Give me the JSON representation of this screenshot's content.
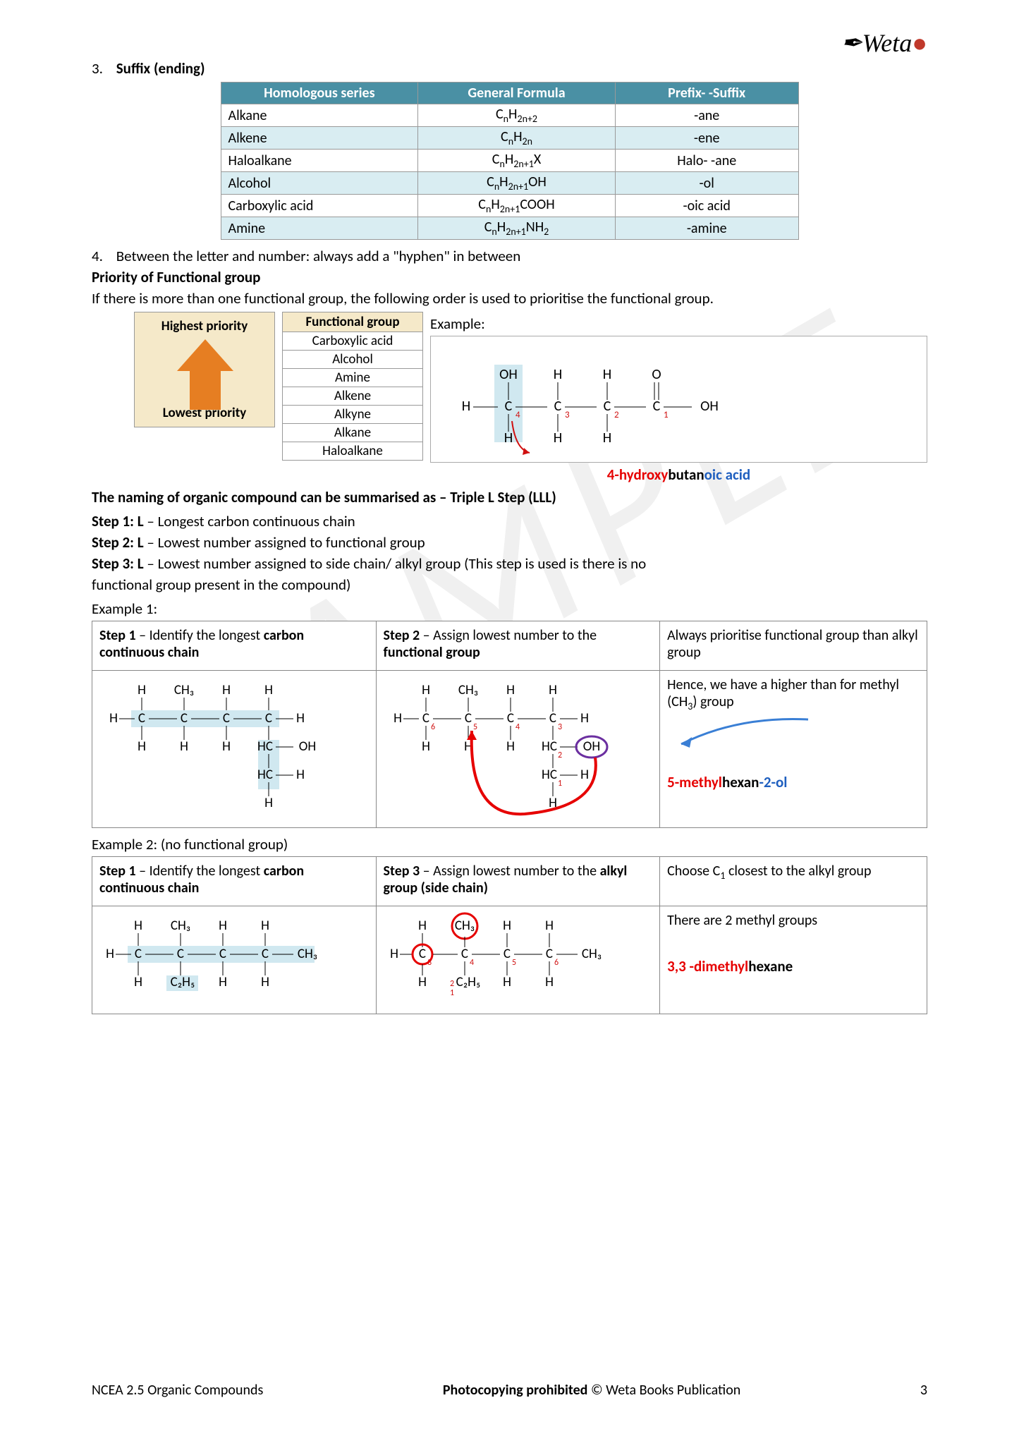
{
  "logo_text": "Weta",
  "watermark": "SAMPLE",
  "item3_num": "3.",
  "item3_title": "Suffix (ending)",
  "suffix_table": {
    "headers": [
      "Homologous series",
      "General Formula",
      "Prefix-  -Suffix"
    ],
    "rows": [
      [
        "Alkane",
        "C<sub>n</sub>H<sub>2n+2</sub>",
        "-ane"
      ],
      [
        "Alkene",
        "C<sub>n</sub>H<sub>2n</sub>",
        "-ene"
      ],
      [
        "Haloalkane",
        "C<sub>n</sub>H<sub>2n+1</sub>X",
        "Halo-   -ane"
      ],
      [
        "Alcohol",
        "C<sub>n</sub>H<sub>2n+1</sub>OH",
        "-ol"
      ],
      [
        "Carboxylic acid",
        "C<sub>n</sub>H<sub>2n+1</sub>COOH",
        "-oic acid"
      ],
      [
        "Amine",
        "C<sub>n</sub>H<sub>2n+1</sub>NH<sub>2</sub>",
        "-amine"
      ]
    ]
  },
  "item4_num": "4.",
  "item4_text": "Between the letter and number: always add a \"hyphen\" in between",
  "priority_heading": "Priority of Functional group",
  "priority_text": "If there is more than one functional group, the following order is used to prioritise the functional group.",
  "priority_box": {
    "highest": "Highest priority",
    "lowest": "Lowest priority"
  },
  "func_table": {
    "header": "Functional group",
    "rows": [
      "Carboxylic acid",
      "Alcohol",
      "Amine",
      "Alkene",
      "Alkyne",
      "Alkane",
      "Haloalkane"
    ]
  },
  "example_label": "Example:",
  "example_compound": {
    "p1": "4-hydroxy",
    "p2": "butan",
    "p3": "oic acid"
  },
  "lll_heading": "The naming of organic compound can be summarised as – Triple L Step (LLL)",
  "step1_b": "Step 1: L",
  "step1_t": " – Longest carbon continuous chain",
  "step2_b": "Step 2: L",
  "step2_t": " – Lowest number assigned to functional group",
  "step3_b": "Step 3: L",
  "step3_t": " – Lowest number assigned to side chain/ alkyl group (This step is used is there is no",
  "step3_t2": "functional group present in the compound)",
  "ex1_label": "Example 1:",
  "ex1": {
    "c1_h": "<b>Step 1</b> – Identify the longest <b>carbon continuous chain</b>",
    "c2_h": "<b>Step 2</b> – Assign lowest number to the <b>functional group</b>",
    "c3_h": "Always prioritise functional group than alkyl group",
    "c3_body": "Hence, we have a higher than for methyl (CH<sub>3</sub>) group",
    "name_p1": "5-methyl",
    "name_p2": "hexan",
    "name_p3": "-2-ol"
  },
  "ex2_label": "Example 2: (no functional group)",
  "ex2": {
    "c1_h": "<b>Step 1</b> – Identify the longest <b>carbon continuous chain</b>",
    "c2_h": "<b>Step 3</b> – Assign lowest number to the <b>alkyl group (side chain)</b>",
    "c3_h": "Choose C<sub>1</sub> closest to the  alkyl group",
    "c3_body": "There are 2 methyl groups",
    "name_p1": "3,3 -dimethyl",
    "name_p2": "hexane"
  },
  "footer": {
    "left": "NCEA 2.5 Organic Compounds",
    "mid_b": "Photocopying prohibited",
    "mid": " © Weta Books Publication",
    "page": "3"
  },
  "colors": {
    "table_header": "#4a90a4",
    "table_alt": "#d9edf2",
    "priority_bg": "#f5e9c9",
    "arrow": "#e67e22",
    "highlight": "#d0e8f0",
    "red": "#e60000",
    "blue": "#1f5fbf",
    "redsub": "#d01010"
  }
}
